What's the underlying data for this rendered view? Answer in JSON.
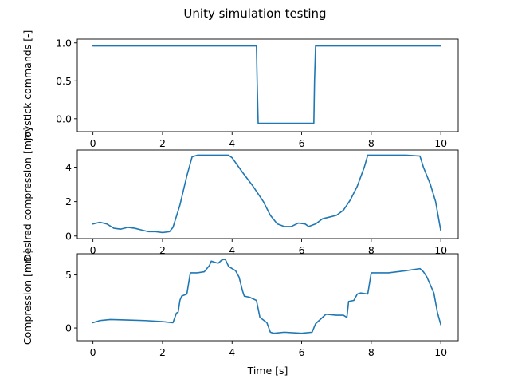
{
  "figure": {
    "suptitle": "Unity simulation testing",
    "line_color": "#1f77b4"
  },
  "chart_data": [
    {
      "type": "line",
      "title": "",
      "xlabel": "",
      "ylabel": "Joystick commands [-]",
      "xlim": [
        -0.45,
        10.5
      ],
      "ylim": [
        -0.17,
        1.05
      ],
      "xticks": [
        0,
        2,
        4,
        6,
        8,
        10
      ],
      "yticks": [
        -0.0,
        0.5,
        1.0
      ],
      "ytick_labels": [
        "0.0",
        "0.5",
        "1.0"
      ],
      "grid": false,
      "series": [
        {
          "x": [
            0.0,
            4.7,
            4.72,
            4.75,
            6.35,
            6.37,
            6.4,
            10.0
          ],
          "y": [
            0.96,
            0.96,
            0.5,
            -0.06,
            -0.06,
            0.5,
            0.96,
            0.96
          ]
        }
      ]
    },
    {
      "type": "line",
      "title": "",
      "xlabel": "",
      "ylabel": "Desired compression [mm]",
      "xlim": [
        -0.45,
        10.5
      ],
      "ylim": [
        -0.15,
        5.0
      ],
      "xticks": [
        0,
        2,
        4,
        6,
        8,
        10
      ],
      "yticks": [
        0,
        2,
        4
      ],
      "ytick_labels": [
        "0",
        "2",
        "4"
      ],
      "grid": false,
      "series": [
        {
          "x": [
            0.0,
            0.2,
            0.4,
            0.6,
            0.8,
            1.0,
            1.2,
            1.4,
            1.6,
            1.8,
            2.0,
            2.2,
            2.3,
            2.5,
            2.7,
            2.85,
            3.0,
            3.5,
            3.9,
            4.0,
            4.3,
            4.6,
            4.9,
            5.1,
            5.3,
            5.5,
            5.7,
            5.9,
            6.1,
            6.2,
            6.4,
            6.6,
            6.8,
            7.0,
            7.2,
            7.4,
            7.6,
            7.8,
            7.9,
            8.5,
            9.0,
            9.4,
            9.5,
            9.7,
            9.85,
            10.0
          ],
          "y": [
            0.7,
            0.8,
            0.7,
            0.45,
            0.4,
            0.5,
            0.45,
            0.35,
            0.25,
            0.25,
            0.2,
            0.25,
            0.5,
            1.8,
            3.5,
            4.6,
            4.7,
            4.7,
            4.7,
            4.55,
            3.7,
            2.9,
            2.0,
            1.2,
            0.7,
            0.55,
            0.55,
            0.75,
            0.7,
            0.55,
            0.7,
            1.0,
            1.1,
            1.2,
            1.5,
            2.1,
            2.9,
            4.0,
            4.7,
            4.7,
            4.7,
            4.65,
            4.0,
            3.0,
            2.0,
            0.3
          ]
        }
      ]
    },
    {
      "type": "line",
      "title": "",
      "xlabel": "Time [s]",
      "ylabel": "Compression [mm]",
      "xlim": [
        -0.45,
        10.5
      ],
      "ylim": [
        -1.2,
        7.0
      ],
      "xticks": [
        0,
        2,
        4,
        6,
        8,
        10
      ],
      "yticks": [
        0,
        5
      ],
      "ytick_labels": [
        "0",
        "5"
      ],
      "grid": false,
      "series": [
        {
          "x": [
            0.0,
            0.2,
            0.5,
            1.0,
            1.5,
            2.0,
            2.3,
            2.4,
            2.45,
            2.5,
            2.55,
            2.7,
            2.8,
            3.0,
            3.2,
            3.35,
            3.4,
            3.6,
            3.7,
            3.8,
            3.9,
            4.0,
            4.1,
            4.2,
            4.3,
            4.35,
            4.5,
            4.7,
            4.8,
            5.0,
            5.1,
            5.2,
            5.5,
            6.0,
            6.3,
            6.4,
            6.6,
            6.7,
            7.0,
            7.2,
            7.3,
            7.35,
            7.5,
            7.6,
            7.7,
            7.9,
            8.0,
            8.5,
            9.0,
            9.2,
            9.4,
            9.5,
            9.6,
            9.8,
            9.9,
            10.0
          ],
          "y": [
            0.5,
            0.7,
            0.8,
            0.75,
            0.7,
            0.6,
            0.5,
            1.4,
            1.5,
            2.6,
            3.0,
            3.2,
            5.2,
            5.2,
            5.3,
            5.9,
            6.3,
            6.1,
            6.4,
            6.5,
            5.8,
            5.6,
            5.4,
            4.8,
            3.5,
            3.0,
            2.9,
            2.6,
            1.0,
            0.5,
            -0.4,
            -0.5,
            -0.4,
            -0.5,
            -0.4,
            0.4,
            1.0,
            1.3,
            1.2,
            1.2,
            1.0,
            2.5,
            2.6,
            3.2,
            3.3,
            3.2,
            5.2,
            5.2,
            5.4,
            5.5,
            5.6,
            5.3,
            4.8,
            3.3,
            1.5,
            0.3
          ]
        }
      ]
    }
  ]
}
